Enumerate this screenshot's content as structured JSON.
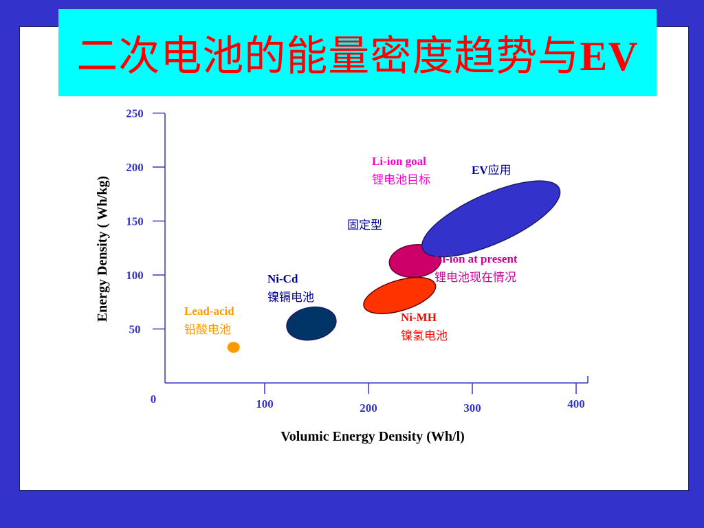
{
  "title": {
    "cjk": "二次电池的能量密度趋势与",
    "latin": "EV"
  },
  "colors": {
    "background": "#3333cc",
    "panel": "#ffffff",
    "title_box": "#00ffff",
    "title_text": "#ff0000",
    "axis": "#3333cc",
    "tick_label": "#3333cc",
    "axis_title": "#000000"
  },
  "chart_data": {
    "type": "scatter",
    "xlabel": "Volumic Energy Density (Wh/l)",
    "ylabel": "Energy Density ( Wh/kg)",
    "xlim": [
      0,
      400
    ],
    "ylim": [
      0,
      250
    ],
    "xticks": [
      100,
      200,
      300,
      400
    ],
    "yticks": [
      50,
      100,
      150,
      200,
      250
    ],
    "origin_label": "0",
    "grid": false,
    "series": [
      {
        "key": "lead_acid",
        "label_en": "Lead-acid",
        "label_cn": "铅酸电池",
        "color": "#ff9900",
        "label_color": "#ff9900",
        "center": [
          70,
          33
        ],
        "radius": [
          6,
          5
        ],
        "rotation": 0,
        "stroke": "none"
      },
      {
        "key": "ni_cd",
        "label_en": "Ni-Cd",
        "label_cn": "镍镉电池",
        "color": "#003366",
        "label_color": "#000099",
        "center": [
          145,
          55
        ],
        "radius": [
          24,
          15
        ],
        "rotation": -10,
        "stroke": "#1a1a66"
      },
      {
        "key": "ni_mh",
        "label_en": "Ni-MH",
        "label_cn": "镍氢电池",
        "color": "#ff3300",
        "label_color": "#ff0000",
        "center": [
          230,
          81
        ],
        "radius": [
          36,
          14
        ],
        "rotation": -17,
        "stroke": "#660000"
      },
      {
        "key": "li_ion_present",
        "label_en": "Li-ion at present",
        "label_cn": "锂电池现在情况",
        "color": "#cc0066",
        "label_color": "#cc0099",
        "center": [
          245,
          113
        ],
        "radius": [
          25,
          15
        ],
        "rotation": -6,
        "stroke": "#660033"
      },
      {
        "key": "li_ion_goal",
        "label_en": "Li-ion goal",
        "label_cn": "锂电池目标",
        "color": "#3333cc",
        "label_color": "#ff00cc",
        "center": [
          318,
          152
        ],
        "radius": [
          72,
          23
        ],
        "rotation": -24,
        "stroke": "#1a1a66"
      }
    ],
    "annotations": [
      {
        "key": "stationary",
        "text": "固定型",
        "color": "#000099"
      },
      {
        "key": "ev_use",
        "text_en": "EV",
        "text_cn": "应用",
        "color": "#000099"
      }
    ]
  }
}
